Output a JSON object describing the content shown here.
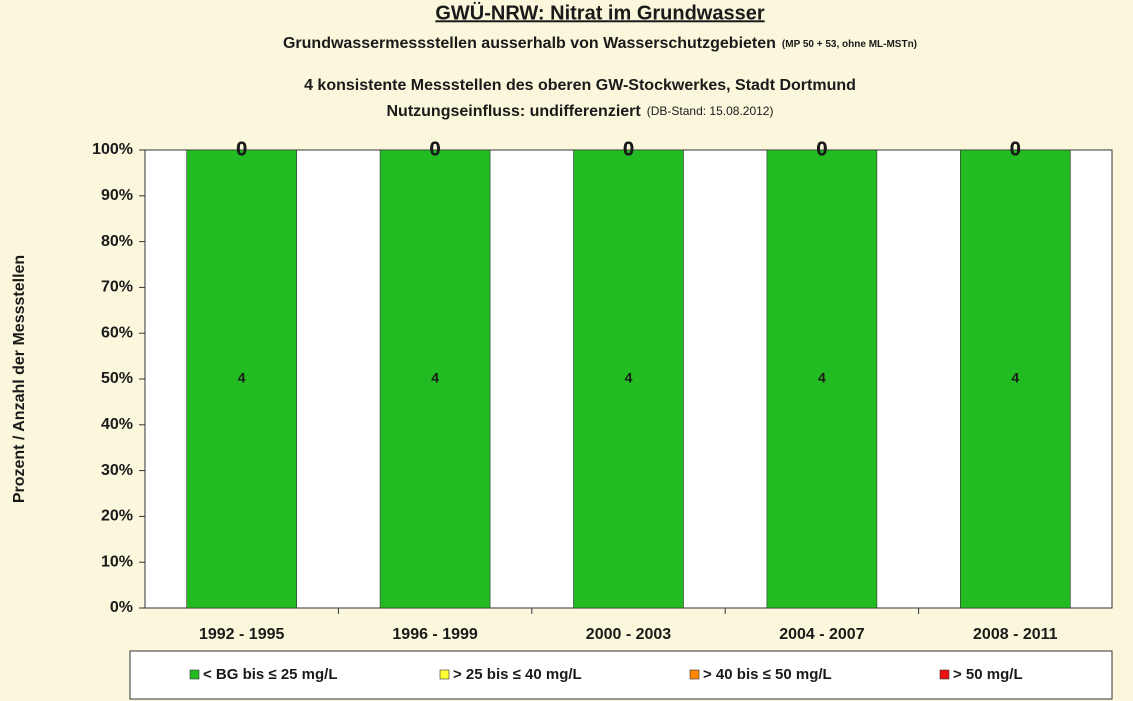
{
  "chart_data": {
    "type": "bar",
    "stacking": "percent",
    "title": "GWÜ-NRW: Nitrat im Grundwasser",
    "subtitle_lines": [
      {
        "main": "Grundwassermessstellen ausserhalb von Wasserschutzgebieten",
        "note": "(MP 50 + 53, ohne ML-MSTn)"
      },
      {
        "main": "4 konsistente Messstellen des oberen GW-Stockwerkes, Stadt Dortmund"
      },
      {
        "main": "Nutzungseinfluss: undifferenziert",
        "note": "(DB-Stand: 15.08.2012)"
      }
    ],
    "ylabel": "Prozent / Anzahl der Messstellen",
    "categories": [
      "1992 - 1995",
      "1996 - 1999",
      "2000 - 2003",
      "2004 - 2007",
      "2008 - 2011"
    ],
    "series": [
      {
        "name": "< BG bis ≤ 25 mg/L",
        "color": "#22bb22",
        "values": [
          4,
          4,
          4,
          4,
          4
        ]
      },
      {
        "name": "> 25 bis ≤ 40 mg/L",
        "color": "#ffff33",
        "values": [
          0,
          0,
          0,
          0,
          0
        ]
      },
      {
        "name": "> 40 bis ≤ 50 mg/L",
        "color": "#ff8800",
        "values": [
          0,
          0,
          0,
          0,
          0
        ]
      },
      {
        "name": "> 50 mg/L",
        "color": "#ee1111",
        "values": [
          0,
          0,
          0,
          0,
          0
        ]
      }
    ],
    "ylim": [
      0,
      100
    ],
    "yticks": [
      {
        "value": 0,
        "label": "0%"
      },
      {
        "value": 10,
        "label": "10%"
      },
      {
        "value": 20,
        "label": "20%"
      },
      {
        "value": 30,
        "label": "30%"
      },
      {
        "value": 40,
        "label": "40%"
      },
      {
        "value": 50,
        "label": "50%"
      },
      {
        "value": 60,
        "label": "60%"
      },
      {
        "value": 70,
        "label": "70%"
      },
      {
        "value": 80,
        "label": "80%"
      },
      {
        "value": 90,
        "label": "90%"
      },
      {
        "value": 100,
        "label": "100%"
      }
    ],
    "legend": "bottom"
  }
}
